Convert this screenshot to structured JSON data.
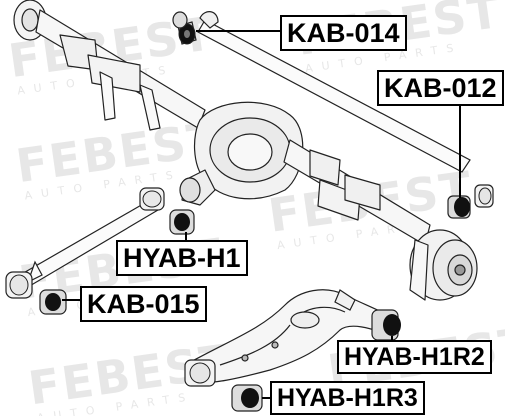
{
  "watermark": {
    "brand": "FEBEST",
    "tagline": "AUTO PARTS"
  },
  "callouts": [
    {
      "id": "kab-014",
      "text": "KAB-014"
    },
    {
      "id": "kab-012",
      "text": "KAB-012"
    },
    {
      "id": "hyab-h1",
      "text": "HYAB-H1"
    },
    {
      "id": "kab-015",
      "text": "KAB-015"
    },
    {
      "id": "hyab-h1r2",
      "text": "HYAB-H1R2"
    },
    {
      "id": "hyab-h1r3",
      "text": "HYAB-H1R3"
    }
  ],
  "colors": {
    "line": "#222222",
    "bushing_fill": "#dddddd",
    "bushing_dark": "#111111",
    "watermark": "#e7e7e7"
  }
}
